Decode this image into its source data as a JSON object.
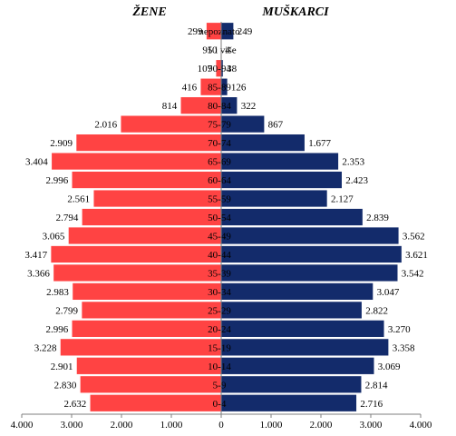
{
  "chart_data": {
    "type": "bar",
    "orientation": "horizontal-pyramid",
    "categories": [
      "nepoznato",
      "95 i više",
      "90-94",
      "85-89",
      "80-84",
      "75-79",
      "70-74",
      "65-69",
      "60-64",
      "55-59",
      "50-54",
      "45-49",
      "40-44",
      "35-39",
      "30-34",
      "25-29",
      "20-24",
      "15-19",
      "10-14",
      "5-9",
      "0-4"
    ],
    "series": [
      {
        "name": "ŽENE",
        "color": "#ff4343",
        "values": [
          299,
          10,
          107,
          416,
          814,
          2016,
          2909,
          3404,
          2996,
          2561,
          2794,
          3065,
          3417,
          3366,
          2983,
          2799,
          2996,
          3228,
          2901,
          2830,
          2632
        ],
        "labels": [
          "299",
          "10",
          "107",
          "416",
          "814",
          "2.016",
          "2.909",
          "3.404",
          "2.996",
          "2.561",
          "2.794",
          "3.065",
          "3.417",
          "3.366",
          "2.983",
          "2.799",
          "2.996",
          "3.228",
          "2.901",
          "2.830",
          "2.632"
        ]
      },
      {
        "name": "MUŠKARCI",
        "color": "#132b6b",
        "values": [
          249,
          4,
          38,
          126,
          322,
          867,
          1677,
          2353,
          2423,
          2127,
          2839,
          3562,
          3621,
          3542,
          3047,
          2822,
          3270,
          3358,
          3069,
          2814,
          2716
        ],
        "labels": [
          "249",
          "4",
          "38",
          "126",
          "322",
          "867",
          "1.677",
          "2.353",
          "2.423",
          "2.127",
          "2.839",
          "3.562",
          "3.621",
          "3.542",
          "3.047",
          "2.822",
          "3.270",
          "3.358",
          "3.069",
          "2.814",
          "2.716"
        ]
      }
    ],
    "xlim": [
      -4000,
      4000
    ],
    "x_ticks": [
      -4000,
      -3000,
      -2000,
      -1000,
      0,
      1000,
      2000,
      3000,
      4000
    ],
    "x_tick_labels": [
      "4.000",
      "3.000",
      "2.000",
      "1.000",
      "0",
      "1.000",
      "2.000",
      "3.000",
      "4.000"
    ],
    "grid": false,
    "legend": "none"
  }
}
